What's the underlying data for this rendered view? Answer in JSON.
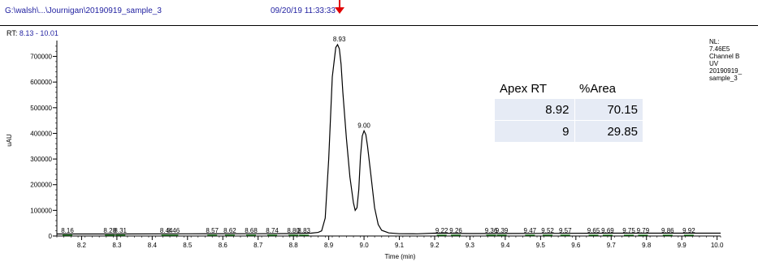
{
  "header": {
    "file_path": "G:\\walsh\\...\\Journigan\\20190919_sample_3",
    "timestamp": "09/20/19 11:33:33"
  },
  "rt_range": {
    "label": "RT:",
    "value": "8.13 - 10.01"
  },
  "nl_info": [
    "NL:",
    "7.46E5",
    "Channel B",
    "UV",
    "20190919_",
    "sample_3"
  ],
  "area_table": {
    "headers": [
      "Apex RT",
      "%Area"
    ],
    "rows": [
      [
        "8.92",
        "70.15"
      ],
      [
        "9",
        "29.85"
      ]
    ]
  },
  "colors": {
    "trace": "#000000",
    "header_text": "#1f1fa0",
    "marker": "#e00000",
    "peak_markers": "#008000"
  },
  "chart_data": {
    "type": "line",
    "title": "",
    "xlabel": "Time (min)",
    "ylabel": "uAU",
    "xlim": [
      8.13,
      10.01
    ],
    "ylim": [
      0,
      746000
    ],
    "x_ticks": [
      8.2,
      8.3,
      8.4,
      8.5,
      8.6,
      8.7,
      8.8,
      8.9,
      9.0,
      9.1,
      9.2,
      9.3,
      9.4,
      9.5,
      9.6,
      9.7,
      9.8,
      9.9,
      10.0
    ],
    "x_tick_labels": [
      "8.2",
      "8.3",
      "8.4",
      "8.5",
      "8.6",
      "8.7",
      "8.8",
      "8.9",
      "9.0",
      "9.1",
      "9.2",
      "9.3",
      "9.4",
      "9.5",
      "9.6",
      "9.7",
      "9.8",
      "9.9",
      "10.0"
    ],
    "y_ticks": [
      0,
      100000,
      200000,
      300000,
      400000,
      500000,
      600000,
      700000
    ],
    "y_tick_labels": [
      "0",
      "100000",
      "200000",
      "300000",
      "400000",
      "500000",
      "600000",
      "700000"
    ],
    "series": [
      {
        "x": [
          8.13,
          8.3,
          8.5,
          8.7,
          8.8,
          8.85,
          8.87,
          8.88,
          8.89,
          8.9,
          8.91,
          8.92,
          8.925,
          8.93,
          8.935,
          8.94,
          8.95,
          8.96,
          8.97,
          8.975,
          8.98,
          8.985,
          8.99,
          8.995,
          9.0,
          9.005,
          9.01,
          9.02,
          9.03,
          9.04,
          9.05,
          9.07,
          9.1,
          9.15,
          9.2,
          9.3,
          9.5,
          9.7,
          9.9,
          10.01
        ],
        "y": [
          8000,
          8000,
          8500,
          9000,
          9500,
          11000,
          14000,
          20000,
          70000,
          300000,
          620000,
          735000,
          746000,
          730000,
          670000,
          560000,
          380000,
          230000,
          130000,
          100000,
          110000,
          180000,
          310000,
          390000,
          410000,
          395000,
          350000,
          230000,
          110000,
          45000,
          22000,
          12000,
          9000,
          8500,
          11000,
          9500,
          10000,
          11000,
          11000,
          11000
        ]
      }
    ],
    "peak_labels": [
      {
        "x": 8.16,
        "label": "8.16"
      },
      {
        "x": 8.28,
        "label": "8.28"
      },
      {
        "x": 8.31,
        "label": "8.31"
      },
      {
        "x": 8.44,
        "label": "8.44"
      },
      {
        "x": 8.46,
        "label": "8.46"
      },
      {
        "x": 8.57,
        "label": "8.57"
      },
      {
        "x": 8.62,
        "label": "8.62"
      },
      {
        "x": 8.68,
        "label": "8.68"
      },
      {
        "x": 8.74,
        "label": "8.74"
      },
      {
        "x": 8.8,
        "label": "8.80"
      },
      {
        "x": 8.83,
        "label": "8.83"
      },
      {
        "x": 8.93,
        "label": "8.93",
        "y": 746000
      },
      {
        "x": 9.0,
        "label": "9.00",
        "y": 410000
      },
      {
        "x": 9.22,
        "label": "9.22"
      },
      {
        "x": 9.26,
        "label": "9.26"
      },
      {
        "x": 9.36,
        "label": "9.36"
      },
      {
        "x": 9.39,
        "label": "9.39"
      },
      {
        "x": 9.47,
        "label": "9.47"
      },
      {
        "x": 9.52,
        "label": "9.52"
      },
      {
        "x": 9.57,
        "label": "9.57"
      },
      {
        "x": 9.65,
        "label": "9.65"
      },
      {
        "x": 9.69,
        "label": "9.69"
      },
      {
        "x": 9.75,
        "label": "9.75"
      },
      {
        "x": 9.79,
        "label": "9.79"
      },
      {
        "x": 9.86,
        "label": "9.86"
      },
      {
        "x": 9.92,
        "label": "9.92"
      }
    ]
  }
}
